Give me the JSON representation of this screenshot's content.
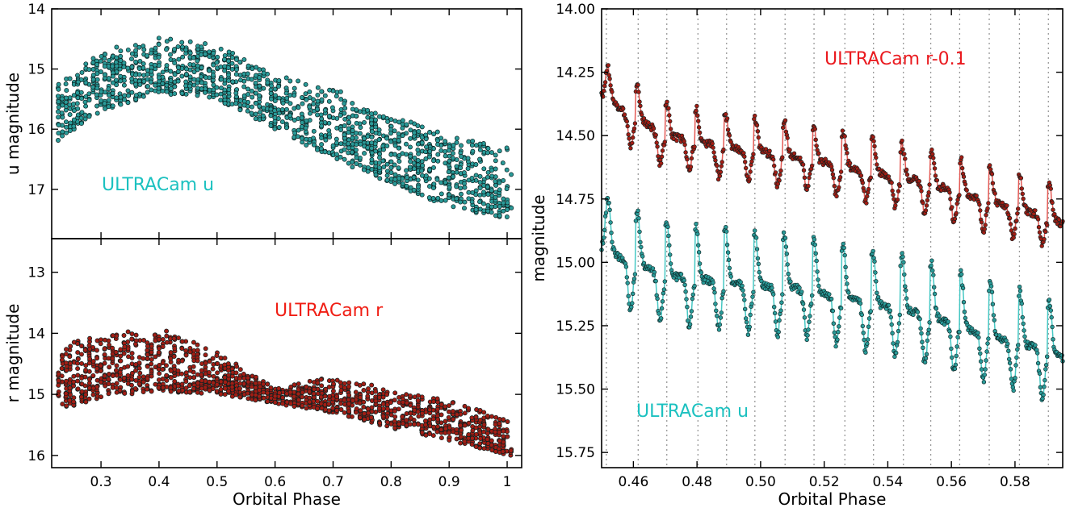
{
  "colors": {
    "u_face": "#2a9a98",
    "r_face": "#a11d14",
    "u_line": "#46c8c4",
    "r_line": "#e45a55",
    "u_text": "#1cc1c0",
    "r_text_left": "#f01e14",
    "r_text_right": "#ea1a1f",
    "grid": "#999999"
  },
  "chart_data": [
    {
      "type": "scatter",
      "panel": "top-left",
      "xlabel": "",
      "ylabel": "u magnitude",
      "xlim": [
        0.215,
        1.025
      ],
      "ylim": [
        17.82,
        14.0
      ],
      "y_inverted": true,
      "xticks": [
        0.3,
        0.4,
        0.5,
        0.6,
        0.7,
        0.8,
        0.9,
        1.0
      ],
      "yticks": [
        14,
        15,
        16,
        17
      ],
      "annotation": "ULTRACam u",
      "series": [
        {
          "name": "ULTRACam u",
          "x_range": [
            0.225,
            1.005
          ],
          "envelope_x": [
            0.23,
            0.3,
            0.4,
            0.5,
            0.6,
            0.7,
            0.8,
            0.9,
            1.0
          ],
          "bright_edge": [
            15.2,
            14.7,
            14.45,
            14.6,
            15.1,
            15.3,
            15.75,
            16.1,
            16.3
          ],
          "faint_edge": [
            16.2,
            15.7,
            15.4,
            15.5,
            16.0,
            16.5,
            16.9,
            17.3,
            17.5
          ]
        }
      ]
    },
    {
      "type": "scatter",
      "panel": "bottom-left",
      "xlabel": "Orbital Phase",
      "ylabel": "r magnitude",
      "xlim": [
        0.215,
        1.025
      ],
      "ylim": [
        16.2,
        12.45
      ],
      "y_inverted": true,
      "xticks": [
        0.3,
        0.4,
        0.5,
        0.6,
        0.7,
        0.8,
        0.9,
        1.0
      ],
      "yticks": [
        13,
        14,
        15,
        16
      ],
      "annotation": "ULTRACam r",
      "series": [
        {
          "name": "ULTRACam r",
          "x_range": [
            0.225,
            1.005
          ],
          "envelope_x": [
            0.23,
            0.3,
            0.4,
            0.5,
            0.6,
            0.7,
            0.8,
            0.9,
            1.0
          ],
          "bright_edge": [
            14.2,
            14.0,
            13.9,
            14.3,
            14.9,
            14.7,
            14.9,
            15.1,
            15.4
          ],
          "faint_edge": [
            15.25,
            15.05,
            14.95,
            15.0,
            15.15,
            15.3,
            15.55,
            15.75,
            16.0
          ]
        }
      ]
    },
    {
      "type": "line",
      "panel": "right",
      "xlabel": "Orbital Phase",
      "ylabel": "magnitude",
      "xlim": [
        0.45,
        0.595
      ],
      "ylim": [
        15.81,
        14.0
      ],
      "y_inverted": true,
      "xticks": [
        0.46,
        0.48,
        0.5,
        0.52,
        0.54,
        0.56,
        0.58
      ],
      "xtick_labels": [
        "0.46",
        "0.48",
        "0.50",
        "0.52",
        "0.54",
        "0.56",
        "0.58"
      ],
      "yticks": [
        14.0,
        14.25,
        14.5,
        14.75,
        15.0,
        15.25,
        15.5,
        15.75
      ],
      "ytick_labels": [
        "14.00",
        "14.25",
        "14.50",
        "14.75",
        "15.00",
        "15.25",
        "15.50",
        "15.75"
      ],
      "grid": "vertical dotted lines",
      "vlines": [
        0.4515,
        0.4615,
        0.4705,
        0.4803,
        0.4893,
        0.4982,
        0.5077,
        0.5168,
        0.5265,
        0.5355,
        0.5449,
        0.5535,
        0.5626,
        0.5719,
        0.5814,
        0.5905
      ],
      "annotations": [
        "ULTRACam r-0.1",
        "ULTRACam u"
      ],
      "series": [
        {
          "name": "ULTRACam r-0.1",
          "x_range": [
            0.45,
            0.595
          ],
          "trend_x": [
            0.45,
            0.47,
            0.49,
            0.51,
            0.53,
            0.55,
            0.57,
            0.59,
            0.595
          ],
          "trend_y": [
            14.35,
            14.5,
            14.55,
            14.58,
            14.63,
            14.68,
            14.75,
            14.82,
            14.85
          ],
          "amplitude": 0.22
        },
        {
          "name": "ULTRACam u",
          "x_range": [
            0.45,
            0.595
          ],
          "trend_x": [
            0.45,
            0.47,
            0.49,
            0.51,
            0.53,
            0.55,
            0.57,
            0.59,
            0.595
          ],
          "trend_y": [
            14.95,
            15.05,
            15.08,
            15.1,
            15.15,
            15.2,
            15.28,
            15.35,
            15.38
          ],
          "amplitude": 0.35
        }
      ]
    }
  ]
}
